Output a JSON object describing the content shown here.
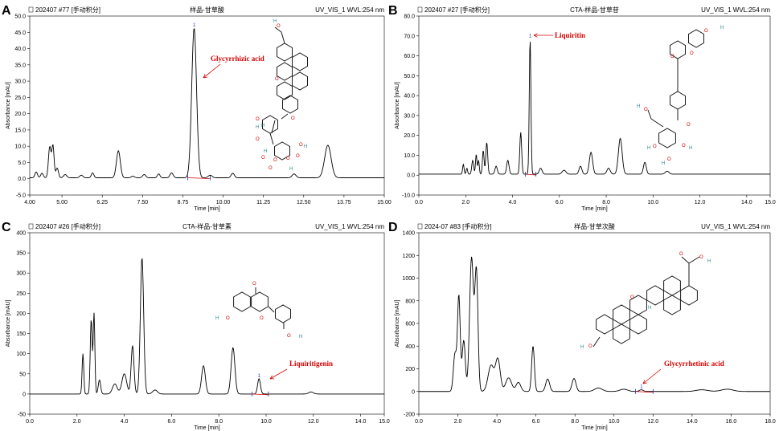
{
  "chart_data": [
    {
      "type": "line",
      "panel_label": "A",
      "header_left": "202407 #77 [手动积分]",
      "header_center": "样品-甘草酸",
      "header_right": "UV_VIS_1 WVL:254 nm",
      "xlabel": "Time [min]",
      "ylabel": "Absorbance [mAU]",
      "xlim": [
        4.0,
        15.0
      ],
      "ylim": [
        -5.0,
        50.0
      ],
      "xticks": [
        4.0,
        5.0,
        6.25,
        7.5,
        8.75,
        10.0,
        11.25,
        12.5,
        13.75,
        15.0
      ],
      "xtick_labels": [
        "4.00",
        "5.00",
        "6.25",
        "7.50",
        "8.75",
        "10.00",
        "11.25",
        "12.50",
        "13.75",
        "15.00"
      ],
      "yticks": [
        -5,
        0,
        5,
        10,
        15,
        20,
        25,
        30,
        35,
        40,
        45,
        50
      ],
      "ytick_labels": [
        "-5.0",
        "0.0",
        "5.0",
        "10.0",
        "15.0",
        "20.0",
        "25.0",
        "30.0",
        "35.0",
        "40.0",
        "45.0",
        "50.0"
      ],
      "annotation": "Glycyrrhizic acid",
      "peak_label": "1",
      "integration": [
        8.9,
        9.6
      ],
      "baseline": 0.3,
      "peaks": [
        [
          4.2,
          1.8,
          0.04
        ],
        [
          4.38,
          1.4,
          0.04
        ],
        [
          4.62,
          9.5,
          0.04
        ],
        [
          4.72,
          9.8,
          0.035
        ],
        [
          4.85,
          3.0,
          0.04
        ],
        [
          5.1,
          1.0,
          0.05
        ],
        [
          5.6,
          0.8,
          0.05
        ],
        [
          5.95,
          1.5,
          0.04
        ],
        [
          6.75,
          8.3,
          0.06
        ],
        [
          7.2,
          0.5,
          0.05
        ],
        [
          7.55,
          1.0,
          0.05
        ],
        [
          8.0,
          1.2,
          0.04
        ],
        [
          8.4,
          1.5,
          0.05
        ],
        [
          9.1,
          46.0,
          0.075
        ],
        [
          9.6,
          0.8,
          0.06
        ],
        [
          10.3,
          1.4,
          0.05
        ],
        [
          12.2,
          1.2,
          0.06
        ],
        [
          13.25,
          10.0,
          0.1
        ]
      ]
    },
    {
      "type": "line",
      "panel_label": "B",
      "header_left": "202407 #27 [手动积分]",
      "header_center": "CTA-样品-甘草苷",
      "header_right": "UV_VIS_1 WVL:254 nm",
      "xlabel": "Time [min]",
      "ylabel": "Absorbance [mAU]",
      "xlim": [
        0.0,
        15.0
      ],
      "ylim": [
        -10.0,
        80.0
      ],
      "xticks": [
        0,
        2,
        4,
        6,
        8,
        10,
        12,
        14,
        15
      ],
      "xtick_labels": [
        "0.0",
        "2.0",
        "4.0",
        "6.0",
        "8.0",
        "10.0",
        "12.0",
        "14.0",
        "15.0"
      ],
      "yticks": [
        -10,
        0,
        10,
        20,
        30,
        40,
        50,
        60,
        70,
        80
      ],
      "ytick_labels": [
        "-10.0",
        "0.0",
        "10.0",
        "20.0",
        "30.0",
        "40.0",
        "50.0",
        "60.0",
        "70.0",
        "80.0"
      ],
      "annotation": "Liquiritin",
      "peak_label": "1",
      "integration": [
        4.55,
        5.0
      ],
      "baseline": 0.5,
      "peaks": [
        [
          1.9,
          5.0,
          0.03
        ],
        [
          2.05,
          3.0,
          0.03
        ],
        [
          2.3,
          7.0,
          0.04
        ],
        [
          2.45,
          10.0,
          0.03
        ],
        [
          2.55,
          7.0,
          0.03
        ],
        [
          2.75,
          12.0,
          0.035
        ],
        [
          2.9,
          16.0,
          0.04
        ],
        [
          3.3,
          4.0,
          0.05
        ],
        [
          3.8,
          7.0,
          0.05
        ],
        [
          4.35,
          21.0,
          0.04
        ],
        [
          4.75,
          68.0,
          0.035
        ],
        [
          5.2,
          3.0,
          0.06
        ],
        [
          6.2,
          2.0,
          0.08
        ],
        [
          6.9,
          4.0,
          0.06
        ],
        [
          7.35,
          11.0,
          0.07
        ],
        [
          8.1,
          3.0,
          0.07
        ],
        [
          8.6,
          18.0,
          0.08
        ],
        [
          9.65,
          6.0,
          0.06
        ],
        [
          10.6,
          1.5,
          0.08
        ]
      ]
    },
    {
      "type": "line",
      "panel_label": "C",
      "header_left": "202407 #26 [手动积分]",
      "header_center": "CTA-样品-甘草素",
      "header_right": "UV_VIS_1 WVL:254 nm",
      "xlabel": "Time [min]",
      "ylabel": "Absorbance [mAU]",
      "xlim": [
        0.0,
        15.0
      ],
      "ylim": [
        -50,
        400
      ],
      "xticks": [
        0,
        2,
        4,
        6,
        8,
        10,
        12,
        14,
        15
      ],
      "xtick_labels": [
        "0.0",
        "2.0",
        "4.0",
        "6.0",
        "8.0",
        "10.0",
        "12.0",
        "14.0",
        "15.0"
      ],
      "yticks": [
        -50,
        0,
        50,
        100,
        150,
        200,
        250,
        300,
        350,
        400
      ],
      "ytick_labels": [
        "-50",
        "0",
        "50",
        "100",
        "150",
        "200",
        "250",
        "300",
        "350",
        "400"
      ],
      "annotation": "Liquiritigenin",
      "peak_label": "1",
      "integration": [
        9.4,
        10.1
      ],
      "baseline": 0,
      "peaks": [
        [
          2.25,
          100,
          0.035
        ],
        [
          2.6,
          185,
          0.04
        ],
        [
          2.72,
          200,
          0.035
        ],
        [
          2.95,
          35,
          0.05
        ],
        [
          3.6,
          25,
          0.1
        ],
        [
          4.0,
          50,
          0.1
        ],
        [
          4.35,
          120,
          0.06
        ],
        [
          4.75,
          338,
          0.07
        ],
        [
          5.3,
          10,
          0.1
        ],
        [
          7.35,
          70,
          0.08
        ],
        [
          8.6,
          115,
          0.08
        ],
        [
          9.7,
          38,
          0.06
        ],
        [
          11.9,
          5,
          0.1
        ]
      ]
    },
    {
      "type": "line",
      "panel_label": "D",
      "header_left": "2024-07 #83 [手动积分]",
      "header_center": "样品-甘草次酸",
      "header_right": "UV_VIS_1 WVL:254 nm",
      "xlabel": "Time [min]",
      "ylabel": "Absorbance [mAU]",
      "xlim": [
        0.0,
        18.0
      ],
      "ylim": [
        -200,
        1400
      ],
      "xticks": [
        0,
        2,
        4,
        6,
        8,
        10,
        12,
        14,
        16,
        18
      ],
      "xtick_labels": [
        "0.0",
        "2.0",
        "4.0",
        "6.0",
        "8.0",
        "10.0",
        "12.0",
        "14.0",
        "16.0",
        "18.0"
      ],
      "yticks": [
        -200,
        0,
        200,
        400,
        600,
        800,
        1000,
        1200,
        1400
      ],
      "ytick_labels": [
        "-200",
        "0",
        "200",
        "400",
        "600",
        "800",
        "1000",
        "1200",
        "1400"
      ],
      "annotation": "Glycyrrhetinic acid",
      "peak_label": "1",
      "integration": [
        11.1,
        12.0
      ],
      "baseline": 0,
      "peaks": [
        [
          1.85,
          330,
          0.08
        ],
        [
          2.05,
          840,
          0.07
        ],
        [
          2.3,
          450,
          0.08
        ],
        [
          2.7,
          1180,
          0.1
        ],
        [
          2.95,
          1050,
          0.08
        ],
        [
          3.7,
          230,
          0.15
        ],
        [
          4.05,
          280,
          0.12
        ],
        [
          4.6,
          120,
          0.15
        ],
        [
          5.1,
          80,
          0.12
        ],
        [
          5.85,
          400,
          0.07
        ],
        [
          6.6,
          110,
          0.1
        ],
        [
          7.95,
          115,
          0.1
        ],
        [
          9.2,
          30,
          0.2
        ],
        [
          10.5,
          20,
          0.2
        ],
        [
          11.4,
          15,
          0.1
        ],
        [
          14.5,
          15,
          0.3
        ],
        [
          15.8,
          20,
          0.3
        ]
      ]
    }
  ]
}
